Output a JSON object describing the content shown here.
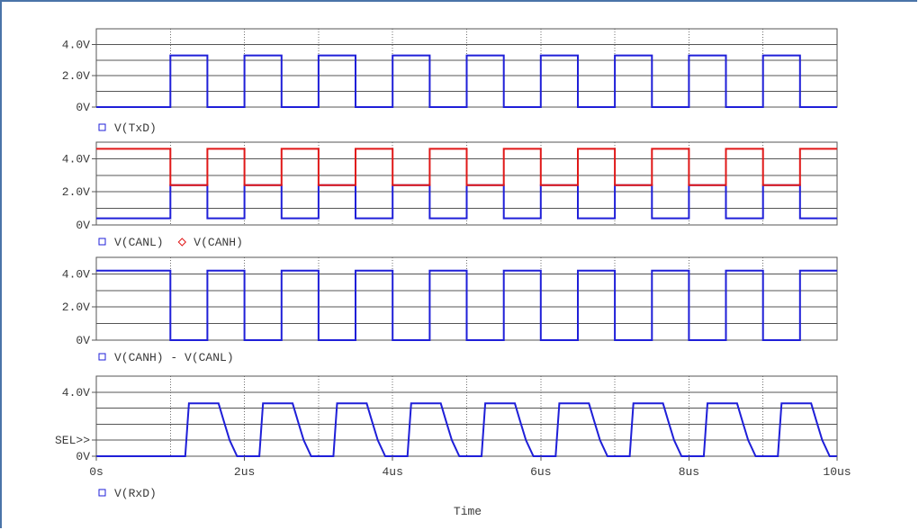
{
  "colors": {
    "blue": "#1f1fd8",
    "red": "#e01818",
    "text": "#3a3a3a"
  },
  "chart_data": [
    {
      "type": "line",
      "ylim": [
        0,
        5
      ],
      "yticks": [
        "4.0V",
        "2.0V",
        "0V"
      ],
      "ytick_values": [
        4,
        2,
        0
      ],
      "series": [
        {
          "name": "V(TxD)",
          "color": "#1f1fd8",
          "marker": "square",
          "x": [
            0,
            1,
            1,
            1.5,
            1.5,
            2,
            2,
            2.5,
            2.5,
            3,
            3,
            3.5,
            3.5,
            4,
            4,
            4.5,
            4.5,
            5,
            5,
            5.5,
            5.5,
            6,
            6,
            6.5,
            6.5,
            7,
            7,
            7.5,
            7.5,
            8,
            8,
            8.5,
            8.5,
            9,
            9,
            9.5,
            9.5,
            10
          ],
          "y": [
            0,
            0,
            3.3,
            3.3,
            0,
            0,
            3.3,
            3.3,
            0,
            0,
            3.3,
            3.3,
            0,
            0,
            3.3,
            3.3,
            0,
            0,
            3.3,
            3.3,
            0,
            0,
            3.3,
            3.3,
            0,
            0,
            3.3,
            3.3,
            0,
            0,
            3.3,
            3.3,
            0,
            0,
            3.3,
            3.3,
            0,
            0
          ]
        }
      ]
    },
    {
      "type": "line",
      "ylim": [
        0,
        5
      ],
      "yticks": [
        "4.0V",
        "2.0V",
        "0V"
      ],
      "ytick_values": [
        4,
        2,
        0
      ],
      "series": [
        {
          "name": "V(CANL)",
          "color": "#1f1fd8",
          "marker": "square",
          "x": [
            0,
            1,
            1,
            1.5,
            1.5,
            2,
            2,
            2.5,
            2.5,
            3,
            3,
            3.5,
            3.5,
            4,
            4,
            4.5,
            4.5,
            5,
            5,
            5.5,
            5.5,
            6,
            6,
            6.5,
            6.5,
            7,
            7,
            7.5,
            7.5,
            8,
            8,
            8.5,
            8.5,
            9,
            9,
            9.5,
            9.5,
            10
          ],
          "y": [
            0.4,
            0.4,
            2.4,
            2.4,
            0.4,
            0.4,
            2.4,
            2.4,
            0.4,
            0.4,
            2.4,
            2.4,
            0.4,
            0.4,
            2.4,
            2.4,
            0.4,
            0.4,
            2.4,
            2.4,
            0.4,
            0.4,
            2.4,
            2.4,
            0.4,
            0.4,
            2.4,
            2.4,
            0.4,
            0.4,
            2.4,
            2.4,
            0.4,
            0.4,
            2.4,
            2.4,
            0.4,
            0.4
          ]
        },
        {
          "name": "V(CANH)",
          "color": "#e01818",
          "marker": "diamond",
          "x": [
            0,
            1,
            1,
            1.5,
            1.5,
            2,
            2,
            2.5,
            2.5,
            3,
            3,
            3.5,
            3.5,
            4,
            4,
            4.5,
            4.5,
            5,
            5,
            5.5,
            5.5,
            6,
            6,
            6.5,
            6.5,
            7,
            7,
            7.5,
            7.5,
            8,
            8,
            8.5,
            8.5,
            9,
            9,
            9.5,
            9.5,
            10
          ],
          "y": [
            4.6,
            4.6,
            2.4,
            2.4,
            4.6,
            4.6,
            2.4,
            2.4,
            4.6,
            4.6,
            2.4,
            2.4,
            4.6,
            4.6,
            2.4,
            2.4,
            4.6,
            4.6,
            2.4,
            2.4,
            4.6,
            4.6,
            2.4,
            2.4,
            4.6,
            4.6,
            2.4,
            2.4,
            4.6,
            4.6,
            2.4,
            2.4,
            4.6,
            4.6,
            2.4,
            2.4,
            4.6,
            4.6
          ]
        }
      ]
    },
    {
      "type": "line",
      "ylim": [
        0,
        5
      ],
      "yticks": [
        "4.0V",
        "2.0V",
        "0V"
      ],
      "ytick_values": [
        4,
        2,
        0
      ],
      "series": [
        {
          "name": "V(CANH) - V(CANL)",
          "color": "#1f1fd8",
          "marker": "square",
          "x": [
            0,
            1,
            1,
            1.5,
            1.5,
            2,
            2,
            2.5,
            2.5,
            3,
            3,
            3.5,
            3.5,
            4,
            4,
            4.5,
            4.5,
            5,
            5,
            5.5,
            5.5,
            6,
            6,
            6.5,
            6.5,
            7,
            7,
            7.5,
            7.5,
            8,
            8,
            8.5,
            8.5,
            9,
            9,
            9.5,
            9.5,
            10
          ],
          "y": [
            4.2,
            4.2,
            0,
            0,
            4.2,
            4.2,
            0,
            0,
            4.2,
            4.2,
            0,
            0,
            4.2,
            4.2,
            0,
            0,
            4.2,
            4.2,
            0,
            0,
            4.2,
            4.2,
            0,
            0,
            4.2,
            4.2,
            0,
            0,
            4.2,
            4.2,
            0,
            0,
            4.2,
            4.2,
            0,
            0,
            4.2,
            4.2
          ]
        }
      ]
    },
    {
      "type": "line",
      "ylim": [
        0,
        5
      ],
      "yticks": [
        "4.0V",
        "SEL>>",
        "0V"
      ],
      "ytick_values": [
        4,
        1,
        0
      ],
      "xlim": [
        0,
        10
      ],
      "xticks": [
        "0s",
        "2us",
        "4us",
        "6us",
        "8us",
        "10us"
      ],
      "xtick_values": [
        0,
        2,
        4,
        6,
        8,
        10
      ],
      "xlabel": "Time",
      "series": [
        {
          "name": "V(RxD)",
          "color": "#1f1fd8",
          "marker": "square",
          "x": [
            0,
            1.2,
            1.25,
            1.65,
            1.72,
            1.8,
            1.9,
            2.2,
            2.25,
            2.65,
            2.72,
            2.8,
            2.9,
            3.2,
            3.25,
            3.65,
            3.72,
            3.8,
            3.9,
            4.2,
            4.25,
            4.65,
            4.72,
            4.8,
            4.9,
            5.2,
            5.25,
            5.65,
            5.72,
            5.8,
            5.9,
            6.2,
            6.25,
            6.65,
            6.72,
            6.8,
            6.9,
            7.2,
            7.25,
            7.65,
            7.72,
            7.8,
            7.9,
            8.2,
            8.25,
            8.65,
            8.72,
            8.8,
            8.9,
            9.2,
            9.25,
            9.65,
            9.72,
            9.8,
            9.9,
            10
          ],
          "y": [
            0,
            0,
            3.3,
            3.3,
            2.2,
            1.0,
            0,
            0,
            3.3,
            3.3,
            2.2,
            1.0,
            0,
            0,
            3.3,
            3.3,
            2.2,
            1.0,
            0,
            0,
            3.3,
            3.3,
            2.2,
            1.0,
            0,
            0,
            3.3,
            3.3,
            2.2,
            1.0,
            0,
            0,
            3.3,
            3.3,
            2.2,
            1.0,
            0,
            0,
            3.3,
            3.3,
            2.2,
            1.0,
            0,
            0,
            3.3,
            3.3,
            2.2,
            1.0,
            0,
            0,
            3.3,
            3.3,
            2.2,
            1.0,
            0,
            0
          ]
        }
      ]
    }
  ]
}
